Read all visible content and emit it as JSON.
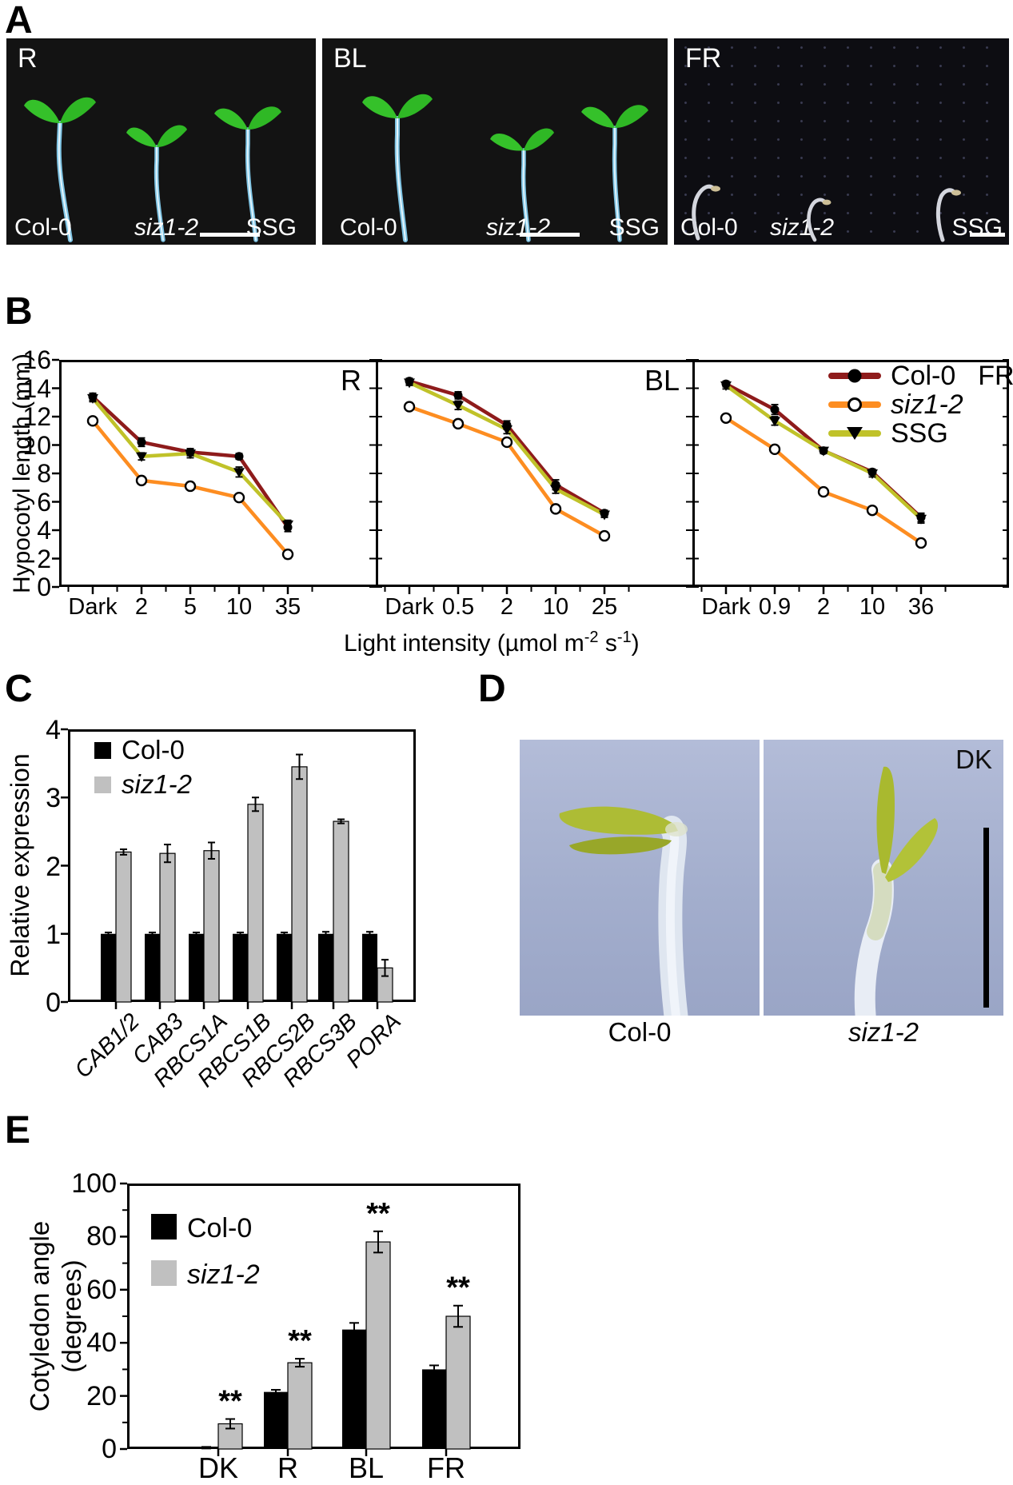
{
  "panel_letters": {
    "A": "A",
    "B": "B",
    "C": "C",
    "D": "D",
    "E": "E"
  },
  "colors": {
    "col0_line": "#8e1b1b",
    "siz12_line": "#fd8d21",
    "ssg_line": "#c0c229",
    "bar_black": "#000000",
    "bar_gray": "#c0c0c0",
    "photoA_bg": "#131313",
    "photoD_bg": "#a6b0cf"
  },
  "panelA": {
    "photos": [
      {
        "condition": "R",
        "genotypes": [
          "Col-0",
          "siz1-2",
          "SSG"
        ]
      },
      {
        "condition": "BL",
        "genotypes": [
          "Col-0",
          "siz1-2",
          "SSG"
        ]
      },
      {
        "condition": "FR",
        "genotypes": [
          "Col-0",
          "siz1-2",
          "SSG"
        ]
      }
    ]
  },
  "panelB": {
    "ylabel": "Hypocotyl length (mm)",
    "xlabel_parts": [
      "Light intensity (µmol m",
      "-2",
      " s",
      "-1",
      ")"
    ],
    "subplot_labels": [
      "R",
      "BL"
    ],
    "panel_label_fr": "FR",
    "legend": [
      {
        "label": "Col-0"
      },
      {
        "label": "siz1-2"
      },
      {
        "label": "SSG"
      }
    ]
  },
  "panelC": {
    "ylabel": "Relative expression",
    "legend": [
      {
        "label": "Col-0"
      },
      {
        "label": "siz1-2"
      }
    ]
  },
  "panelD": {
    "corner_label": "DK",
    "photo_labels": [
      "Col-0",
      "siz1-2"
    ]
  },
  "panelE": {
    "ylabel_line1": "Cotyledon angle",
    "ylabel_line2": "(degrees)",
    "legend": [
      {
        "label": "Col-0"
      },
      {
        "label": "siz1-2"
      }
    ]
  },
  "chart_data": [
    {
      "id": "B-R",
      "type": "line",
      "title": "R",
      "x": [
        "Dark",
        "2",
        "5",
        "10",
        "35"
      ],
      "ylabel": "Hypocotyl length (mm)",
      "ylim": [
        0,
        16
      ],
      "series": [
        {
          "name": "Col-0",
          "color": "#8e1b1b",
          "marker": "dot",
          "values": [
            13.4,
            10.2,
            9.5,
            9.2,
            4.2
          ],
          "errors": [
            0.25,
            0.3,
            0.25,
            0.2,
            0.3
          ]
        },
        {
          "name": "siz1-2",
          "color": "#fd8d21",
          "marker": "open",
          "values": [
            11.7,
            7.5,
            7.1,
            6.3,
            2.3
          ],
          "errors": [
            0.2,
            0.2,
            0.2,
            0.2,
            0.3
          ]
        },
        {
          "name": "SSG",
          "color": "#c0c229",
          "marker": "tri",
          "values": [
            13.3,
            9.2,
            9.4,
            8.1,
            4.4
          ],
          "errors": [
            0.25,
            0.25,
            0.3,
            0.35,
            0.3
          ]
        }
      ]
    },
    {
      "id": "B-BL",
      "type": "line",
      "title": "BL",
      "x": [
        "Dark",
        "0.5",
        "2",
        "10",
        "25"
      ],
      "ylabel": "Hypocotyl length (mm)",
      "ylim": [
        0,
        16
      ],
      "series": [
        {
          "name": "Col-0",
          "color": "#8e1b1b",
          "marker": "dot",
          "values": [
            14.5,
            13.5,
            11.4,
            7.2,
            5.2
          ],
          "errors": [
            0.2,
            0.25,
            0.3,
            0.35,
            0.2
          ]
        },
        {
          "name": "siz1-2",
          "color": "#fd8d21",
          "marker": "open",
          "values": [
            12.7,
            11.5,
            10.2,
            5.5,
            3.6
          ],
          "errors": [
            0.2,
            0.2,
            0.25,
            0.2,
            0.15
          ]
        },
        {
          "name": "SSG",
          "color": "#c0c229",
          "marker": "tri",
          "values": [
            14.4,
            12.8,
            11.1,
            6.9,
            5.1
          ],
          "errors": [
            0.2,
            0.3,
            0.3,
            0.3,
            0.2
          ]
        }
      ]
    },
    {
      "id": "B-FR",
      "type": "line",
      "title": "FR",
      "x": [
        "Dark",
        "0.9",
        "2",
        "10",
        "36"
      ],
      "ylabel": "Hypocotyl length (mm)",
      "ylim": [
        0,
        16
      ],
      "series": [
        {
          "name": "Col-0",
          "color": "#8e1b1b",
          "marker": "dot",
          "values": [
            14.3,
            12.5,
            9.6,
            8.1,
            4.9
          ],
          "errors": [
            0.2,
            0.35,
            0.2,
            0.2,
            0.3
          ]
        },
        {
          "name": "siz1-2",
          "color": "#fd8d21",
          "marker": "open",
          "values": [
            11.9,
            9.7,
            6.7,
            5.4,
            3.1
          ],
          "errors": [
            0.2,
            0.2,
            0.25,
            0.2,
            0.2
          ]
        },
        {
          "name": "SSG",
          "color": "#c0c229",
          "marker": "tri",
          "values": [
            14.2,
            11.7,
            9.6,
            8.0,
            4.8
          ],
          "errors": [
            0.25,
            0.3,
            0.2,
            0.25,
            0.3
          ]
        }
      ]
    },
    {
      "id": "C",
      "type": "bar",
      "categories": [
        "CAB1/2",
        "CAB3",
        "RBCS1A",
        "RBCS1B",
        "RBCS2B",
        "RBCS3B",
        "PORA"
      ],
      "ylabel": "Relative expression",
      "ylim": [
        0,
        4
      ],
      "series": [
        {
          "name": "Col-0",
          "color": "#000000",
          "values": [
            1,
            1,
            1,
            1,
            1,
            1,
            1
          ],
          "errors": [
            0.02,
            0.02,
            0.02,
            0.02,
            0.02,
            0.03,
            0.03
          ]
        },
        {
          "name": "siz1-2",
          "color": "#c0c0c0",
          "values": [
            2.2,
            2.18,
            2.22,
            2.9,
            3.45,
            2.65,
            0.5
          ],
          "errors": [
            0.04,
            0.13,
            0.12,
            0.1,
            0.18,
            0.03,
            0.12
          ]
        }
      ]
    },
    {
      "id": "E",
      "type": "bar",
      "categories": [
        "DK",
        "R",
        "BL",
        "FR"
      ],
      "ylabel": "Cotyledon angle (degrees)",
      "ylim": [
        0,
        100
      ],
      "series": [
        {
          "name": "Col-0",
          "color": "#000000",
          "values": [
            0.5,
            21.5,
            45,
            30
          ],
          "errors": [
            0.3,
            0.8,
            2.5,
            1.5
          ]
        },
        {
          "name": "siz1-2",
          "color": "#c0c0c0",
          "values": [
            9.5,
            32.5,
            78,
            50
          ],
          "errors": [
            1.8,
            1.5,
            4,
            4
          ],
          "sig": [
            "**",
            "**",
            "**",
            "**"
          ]
        }
      ]
    }
  ]
}
